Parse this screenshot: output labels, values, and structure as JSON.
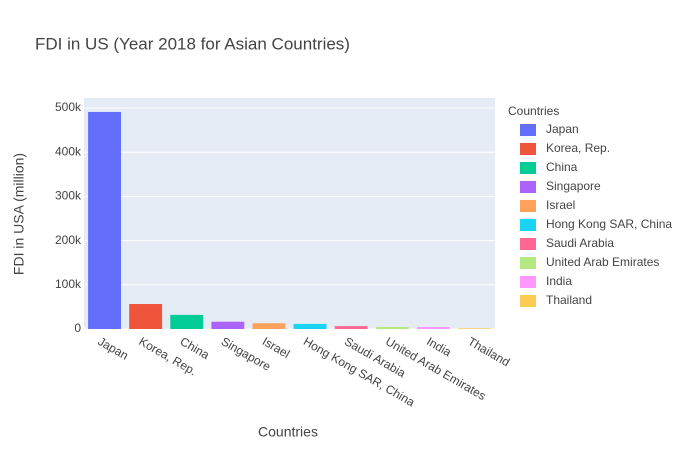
{
  "chart_data": {
    "type": "bar",
    "title": "FDI in US (Year 2018 for Asian Countries)",
    "x_label": "Countries",
    "y_label": "FDI in USA (million)",
    "legend_title": "Countries",
    "categories": [
      "Japan",
      "Korea, Rep.",
      "China",
      "Singapore",
      "Israel",
      "Hong Kong SAR, China",
      "Saudi Arabia",
      "United Arab Emirates",
      "India",
      "Thailand"
    ],
    "values": [
      491000,
      56500,
      32000,
      16500,
      13000,
      11500,
      6500,
      4500,
      4500,
      1500
    ],
    "colors": [
      "#636efa",
      "#EF553B",
      "#00cc96",
      "#ab63fa",
      "#FFA15A",
      "#19d3f3",
      "#FF6692",
      "#B6E880",
      "#FF97FF",
      "#FECB52"
    ],
    "ylim": [
      0,
      522600
    ],
    "yticks": [
      0,
      {
        "value": 100000,
        "label": "100k"
      },
      {
        "value": 200000,
        "label": "200k"
      },
      {
        "value": 300000,
        "label": "300k"
      },
      {
        "value": 400000,
        "label": "400k"
      },
      {
        "value": 500000,
        "label": "500k"
      }
    ],
    "grid": true,
    "legend": "right"
  }
}
